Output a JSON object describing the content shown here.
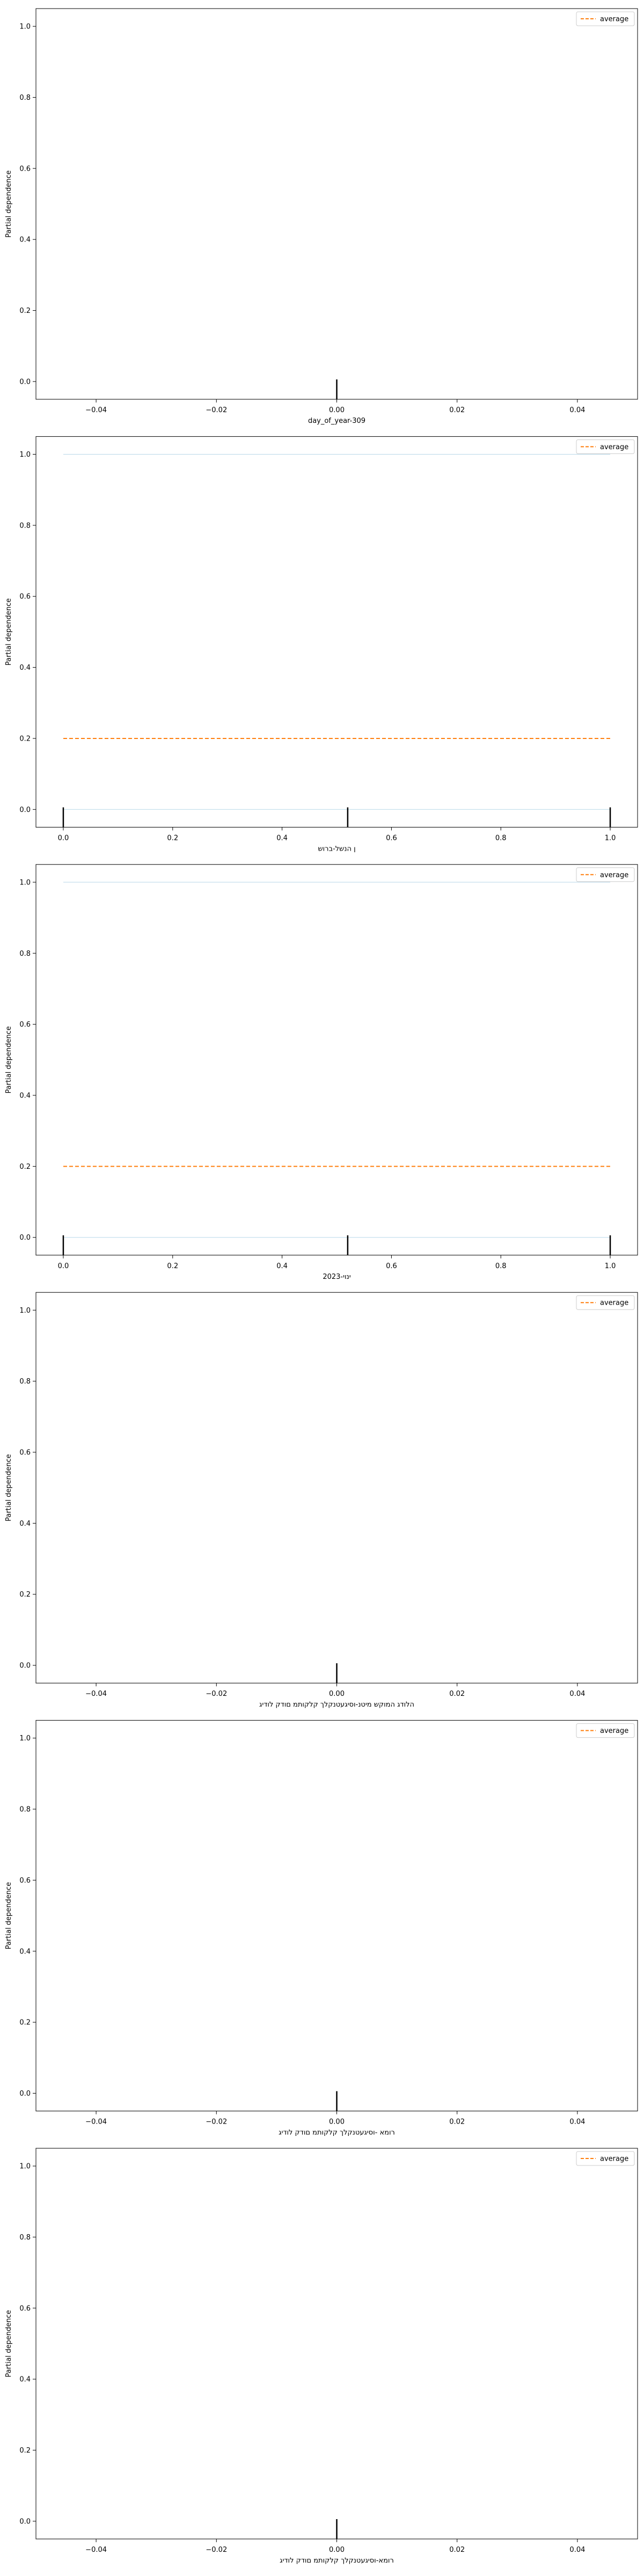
{
  "chart_data": [
    {
      "type": "line",
      "xlabel": "day_of_year-309",
      "ylabel": "Partial dependence",
      "xlim": [
        -0.05,
        0.05
      ],
      "ylim": [
        -0.05,
        1.05
      ],
      "xticks": [
        -0.04,
        -0.02,
        0.0,
        0.02,
        0.04
      ],
      "xtick_labels": [
        "−0.04",
        "−0.02",
        "0.00",
        "0.02",
        "0.04"
      ],
      "yticks": [
        0.0,
        0.2,
        0.4,
        0.6,
        0.8,
        1.0
      ],
      "ytick_labels": [
        "0.0",
        "0.2",
        "0.4",
        "0.6",
        "0.8",
        "1.0"
      ],
      "legend": {
        "position": "upper right",
        "entries": [
          "average"
        ]
      },
      "series": [
        {
          "name": "average",
          "style": "dashed",
          "color": "#ff7f0e",
          "x": [],
          "y": []
        }
      ],
      "ice_lines": [],
      "rug_x": [
        0.0
      ]
    },
    {
      "type": "line",
      "xlabel": "ן הנשל-ברוש",
      "ylabel": "Partial dependence",
      "xlim": [
        -0.05,
        1.05
      ],
      "ylim": [
        -0.05,
        1.05
      ],
      "xticks": [
        0.0,
        0.2,
        0.4,
        0.6,
        0.8,
        1.0
      ],
      "xtick_labels": [
        "0.0",
        "0.2",
        "0.4",
        "0.6",
        "0.8",
        "1.0"
      ],
      "yticks": [
        0.0,
        0.2,
        0.4,
        0.6,
        0.8,
        1.0
      ],
      "ytick_labels": [
        "0.0",
        "0.2",
        "0.4",
        "0.6",
        "0.8",
        "1.0"
      ],
      "legend": {
        "position": "upper right",
        "entries": [
          "average"
        ]
      },
      "series": [
        {
          "name": "average",
          "style": "dashed",
          "color": "#ff7f0e",
          "x": [
            0.0,
            1.0
          ],
          "y": [
            0.2,
            0.2
          ]
        }
      ],
      "ice_lines": [
        {
          "x": [
            0.0,
            1.0
          ],
          "y": [
            1.0,
            1.0
          ]
        },
        {
          "x": [
            0.0,
            1.0
          ],
          "y": [
            0.0,
            0.0
          ]
        }
      ],
      "rug_x": [
        0.0,
        0.52,
        1.0
      ]
    },
    {
      "type": "line",
      "xlabel": "ינוי-2023",
      "ylabel": "Partial dependence",
      "xlim": [
        -0.05,
        1.05
      ],
      "ylim": [
        -0.05,
        1.05
      ],
      "xticks": [
        0.0,
        0.2,
        0.4,
        0.6,
        0.8,
        1.0
      ],
      "xtick_labels": [
        "0.0",
        "0.2",
        "0.4",
        "0.6",
        "0.8",
        "1.0"
      ],
      "yticks": [
        0.0,
        0.2,
        0.4,
        0.6,
        0.8,
        1.0
      ],
      "ytick_labels": [
        "0.0",
        "0.2",
        "0.4",
        "0.6",
        "0.8",
        "1.0"
      ],
      "legend": {
        "position": "upper right",
        "entries": [
          "average"
        ]
      },
      "series": [
        {
          "name": "average",
          "style": "dashed",
          "color": "#ff7f0e",
          "x": [
            0.0,
            1.0
          ],
          "y": [
            0.2,
            0.2
          ]
        }
      ],
      "ice_lines": [
        {
          "x": [
            0.0,
            1.0
          ],
          "y": [
            1.0,
            1.0
          ]
        },
        {
          "x": [
            0.0,
            1.0
          ],
          "y": [
            0.0,
            0.0
          ]
        }
      ],
      "rug_x": [
        0.0,
        0.52,
        1.0
      ]
    },
    {
      "type": "line",
      "xlabel": "הלודג המוקש מיטנ-וסיגעטנקלך קלקותמ םודק לודיג",
      "ylabel": "Partial dependence",
      "xlim": [
        -0.05,
        0.05
      ],
      "ylim": [
        -0.05,
        1.05
      ],
      "xticks": [
        -0.04,
        -0.02,
        0.0,
        0.02,
        0.04
      ],
      "xtick_labels": [
        "−0.04",
        "−0.02",
        "0.00",
        "0.02",
        "0.04"
      ],
      "yticks": [
        0.0,
        0.2,
        0.4,
        0.6,
        0.8,
        1.0
      ],
      "ytick_labels": [
        "0.0",
        "0.2",
        "0.4",
        "0.6",
        "0.8",
        "1.0"
      ],
      "legend": {
        "position": "upper right",
        "entries": [
          "average"
        ]
      },
      "series": [
        {
          "name": "average",
          "style": "dashed",
          "color": "#ff7f0e",
          "x": [],
          "y": []
        }
      ],
      "ice_lines": [],
      "rug_x": [
        0.0
      ]
    },
    {
      "type": "line",
      "xlabel": "רומא -וסיגעטנקלך קלקותמ םודק לודיג",
      "ylabel": "Partial dependence",
      "xlim": [
        -0.05,
        0.05
      ],
      "ylim": [
        -0.05,
        1.05
      ],
      "xticks": [
        -0.04,
        -0.02,
        0.0,
        0.02,
        0.04
      ],
      "xtick_labels": [
        "−0.04",
        "−0.02",
        "0.00",
        "0.02",
        "0.04"
      ],
      "yticks": [
        0.0,
        0.2,
        0.4,
        0.6,
        0.8,
        1.0
      ],
      "ytick_labels": [
        "0.0",
        "0.2",
        "0.4",
        "0.6",
        "0.8",
        "1.0"
      ],
      "legend": {
        "position": "upper right",
        "entries": [
          "average"
        ]
      },
      "series": [
        {
          "name": "average",
          "style": "dashed",
          "color": "#ff7f0e",
          "x": [],
          "y": []
        }
      ],
      "ice_lines": [],
      "rug_x": [
        0.0
      ]
    },
    {
      "type": "line",
      "xlabel": "רומא-וסיגעטנקלך קלקותמ םודק לודיג",
      "ylabel": "Partial dependence",
      "xlim": [
        -0.05,
        0.05
      ],
      "ylim": [
        -0.05,
        1.05
      ],
      "xticks": [
        -0.04,
        -0.02,
        0.0,
        0.02,
        0.04
      ],
      "xtick_labels": [
        "−0.04",
        "−0.02",
        "0.00",
        "0.02",
        "0.04"
      ],
      "yticks": [
        0.0,
        0.2,
        0.4,
        0.6,
        0.8,
        1.0
      ],
      "ytick_labels": [
        "0.0",
        "0.2",
        "0.4",
        "0.6",
        "0.8",
        "1.0"
      ],
      "legend": {
        "position": "upper right",
        "entries": [
          "average"
        ]
      },
      "series": [
        {
          "name": "average",
          "style": "dashed",
          "color": "#ff7f0e",
          "x": [],
          "y": []
        }
      ],
      "ice_lines": [],
      "rug_x": [
        0.0
      ]
    }
  ],
  "colors": {
    "average": "#ff7f0e",
    "ice": "#a6cee3",
    "axes": "#000000",
    "rug": "#000000"
  }
}
